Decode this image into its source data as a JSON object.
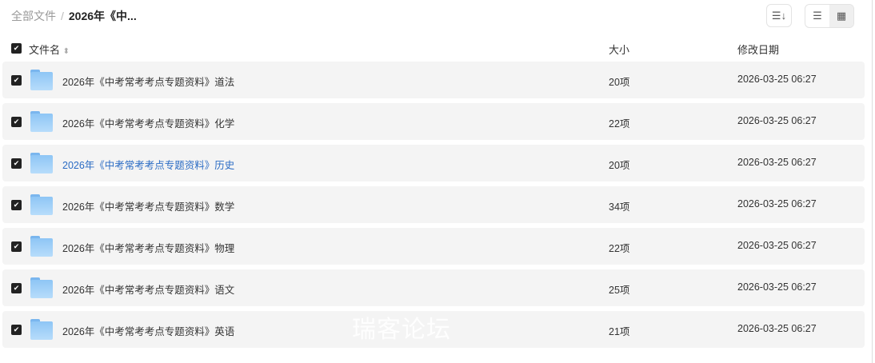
{
  "breadcrumb": {
    "root": "全部文件",
    "separator": "/",
    "current": "2026年《中..."
  },
  "toolbar": {
    "sort_icon": "sort-icon",
    "list_icon": "list-view-icon",
    "grid_icon": "grid-view-icon",
    "active_view": "grid"
  },
  "header": {
    "name": "文件名",
    "sort_indicator": "⬍",
    "size": "大小",
    "date": "修改日期"
  },
  "rows": [
    {
      "name": "2026年《中考常考考点专题资料》道法",
      "size": "20项",
      "date": "2026-03-25 06:27"
    },
    {
      "name": "2026年《中考常考考点专题资料》化学",
      "size": "22项",
      "date": "2026-03-25 06:27"
    },
    {
      "name": "2026年《中考常考考点专题资料》历史",
      "size": "20项",
      "date": "2026-03-25 06:27"
    },
    {
      "name": "2026年《中考常考考点专题资料》数学",
      "size": "34项",
      "date": "2026-03-25 06:27"
    },
    {
      "name": "2026年《中考常考考点专题资料》物理",
      "size": "22项",
      "date": "2026-03-25 06:27"
    },
    {
      "name": "2026年《中考常考考点专题资料》语文",
      "size": "25项",
      "date": "2026-03-25 06:27"
    },
    {
      "name": "2026年《中考常考考点专题资料》英语",
      "size": "21项",
      "date": "2026-03-25 06:27"
    }
  ],
  "watermark": "瑞客论坛"
}
